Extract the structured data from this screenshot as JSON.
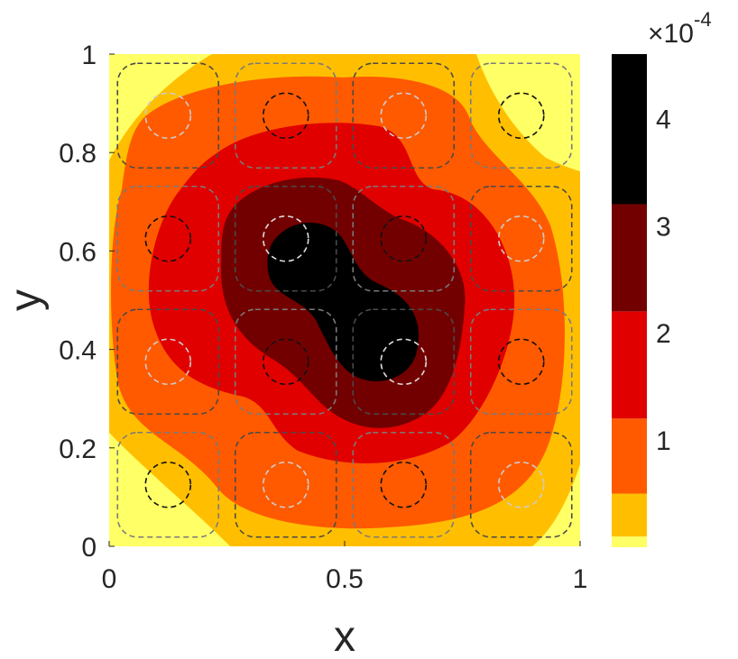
{
  "chart_data": {
    "type": "heatmap",
    "subtype": "filled-contour",
    "title": "",
    "xlabel": "x",
    "ylabel": "y",
    "xlim": [
      0,
      1
    ],
    "ylim": [
      0,
      1
    ],
    "x_ticks": [
      0,
      0.5,
      1
    ],
    "x_tick_labels": [
      "0",
      "0.5",
      "1"
    ],
    "y_ticks": [
      0,
      0.2,
      0.4,
      0.6,
      0.8,
      1
    ],
    "y_tick_labels": [
      "0",
      "0.2",
      "0.4",
      "0.6",
      "0.8",
      "1"
    ],
    "grid": false,
    "colormap": "hot (reversed)",
    "colorbar": {
      "range": [
        0,
        4.6
      ],
      "ticks": [
        1,
        2,
        3,
        4
      ],
      "tick_labels": [
        "1",
        "2",
        "3",
        "4"
      ],
      "exponent_base": "×10",
      "exponent": "-4",
      "levels": [
        0,
        0.1,
        0.5,
        1.2,
        2.2,
        3.2,
        4.6
      ],
      "level_colors": [
        "#ffff66",
        "#ffbf00",
        "#ff5a00",
        "#e00000",
        "#730000",
        "#000000"
      ]
    },
    "field": {
      "description_of_bumps": "peak of ~4.5e-4 near (0.5, 0.5) with secondary lobes toward (0.38,0.62) and (0.62,0.38)",
      "center_peaks": [
        {
          "x": 0.42,
          "y": 0.57,
          "value": 4.4
        },
        {
          "x": 0.58,
          "y": 0.43,
          "value": 4.4
        }
      ],
      "corner_minimum_regions": [
        {
          "x": 0.1,
          "y": 0.1
        },
        {
          "x": 0.9,
          "y": 0.9
        },
        {
          "x": 0.05,
          "y": 0.95
        },
        {
          "x": 0.97,
          "y": 0.15
        }
      ]
    },
    "overlay": {
      "type": "dashed contour lines",
      "grid_centers": [
        0.125,
        0.375,
        0.625,
        0.875
      ],
      "rounded_squares": true,
      "circles": [
        {
          "x": 0.125,
          "y": 0.875,
          "color": "#cccccc"
        },
        {
          "x": 0.375,
          "y": 0.875,
          "color": "#111111"
        },
        {
          "x": 0.625,
          "y": 0.875,
          "color": "#cccccc"
        },
        {
          "x": 0.875,
          "y": 0.875,
          "color": "#111111"
        },
        {
          "x": 0.125,
          "y": 0.625,
          "color": "#111111"
        },
        {
          "x": 0.375,
          "y": 0.625,
          "color": "#dddddd"
        },
        {
          "x": 0.625,
          "y": 0.625,
          "color": "#111111"
        },
        {
          "x": 0.875,
          "y": 0.625,
          "color": "#cccccc"
        },
        {
          "x": 0.125,
          "y": 0.375,
          "color": "#cccccc"
        },
        {
          "x": 0.375,
          "y": 0.375,
          "color": "#111111"
        },
        {
          "x": 0.625,
          "y": 0.375,
          "color": "#dddddd"
        },
        {
          "x": 0.875,
          "y": 0.375,
          "color": "#111111"
        },
        {
          "x": 0.125,
          "y": 0.125,
          "color": "#111111"
        },
        {
          "x": 0.375,
          "y": 0.125,
          "color": "#cccccc"
        },
        {
          "x": 0.625,
          "y": 0.125,
          "color": "#111111"
        },
        {
          "x": 0.875,
          "y": 0.125,
          "color": "#cccccc"
        }
      ]
    }
  }
}
